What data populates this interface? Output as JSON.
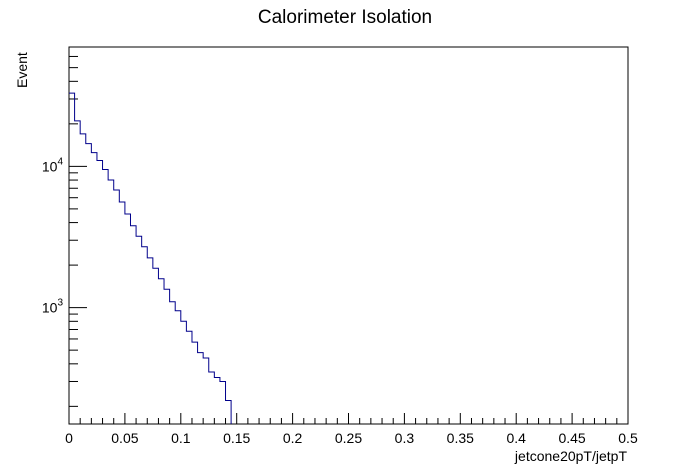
{
  "chart_data": {
    "type": "histogram-step",
    "title": "Calorimeter Isolation",
    "xlabel": "jetcone20pT/jetpT",
    "ylabel": "Event",
    "xlim": [
      0,
      0.5
    ],
    "ylim": [
      150,
      70000
    ],
    "yscale": "log",
    "grid": false,
    "line_color": "#00008b",
    "x_tick_labels": [
      "0",
      "0.05",
      "0.1",
      "0.15",
      "0.2",
      "0.25",
      "0.3",
      "0.35",
      "0.4",
      "0.45",
      "0.5"
    ],
    "y_tick_labels": [
      {
        "base": "10",
        "exp": "3",
        "value": 1000
      },
      {
        "base": "10",
        "exp": "4",
        "value": 10000
      }
    ],
    "bin_width": 0.005,
    "bin_edges_start": 0,
    "values": [
      33000,
      21000,
      17000,
      14500,
      12500,
      11000,
      9500,
      8000,
      6800,
      5600,
      4600,
      3800,
      3200,
      2700,
      2250,
      1900,
      1600,
      1350,
      1100,
      950,
      800,
      680,
      570,
      480,
      440,
      350,
      320,
      300,
      220
    ]
  }
}
